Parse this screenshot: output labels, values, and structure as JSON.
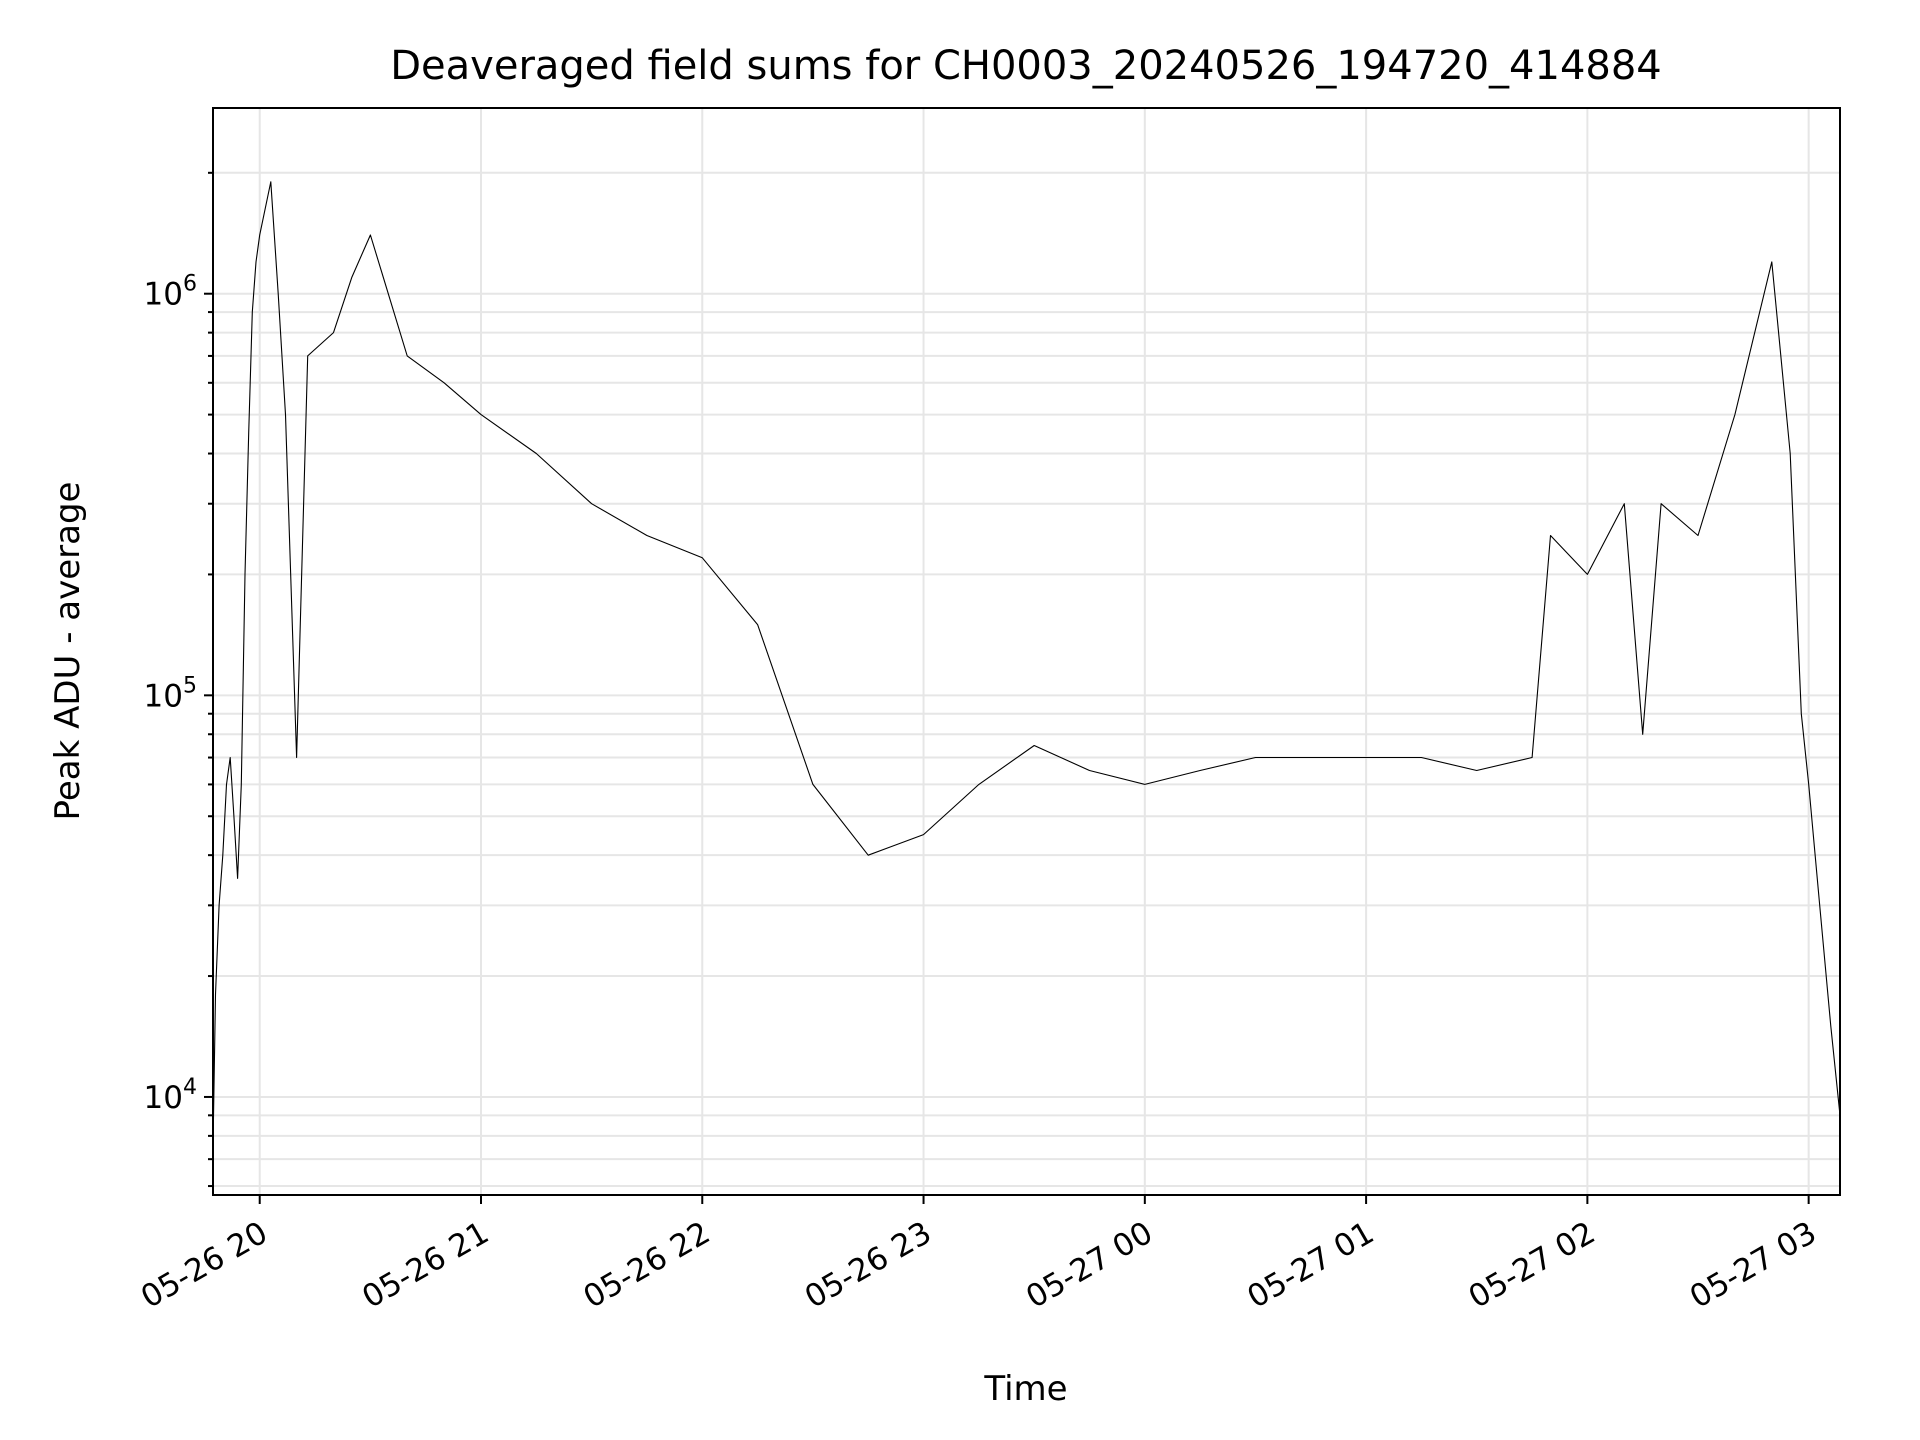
{
  "chart_data": {
    "type": "line",
    "title": "Deaveraged field sums for CH0003_20240526_194720_414884",
    "xlabel": "Time",
    "ylabel": "Peak ADU - average",
    "yscale": "log",
    "ylim": [
      5700,
      2900000
    ],
    "xlim": [
      "2024-05-26 19:47:20",
      "2024-05-27 03:08:30"
    ],
    "grid": true,
    "grid_minor": true,
    "line_color": "#000000",
    "x_ticks": [
      "2024-05-26 20:00",
      "2024-05-26 21:00",
      "2024-05-26 22:00",
      "2024-05-26 23:00",
      "2024-05-27 00:00",
      "2024-05-27 01:00",
      "2024-05-27 02:00",
      "2024-05-27 03:00"
    ],
    "x_tick_labels": [
      "05-26 20",
      "05-26 21",
      "05-26 22",
      "05-26 23",
      "05-27 00",
      "05-27 01",
      "05-27 02",
      "05-27 03"
    ],
    "y_ticks": [
      {
        "base": "10",
        "exp": "4",
        "value": 10000
      },
      {
        "base": "10",
        "exp": "5",
        "value": 100000
      },
      {
        "base": "10",
        "exp": "6",
        "value": 1000000
      }
    ],
    "series": [
      {
        "values": [
          [
            "2024-05-26 19:47:20",
            7500
          ],
          [
            "2024-05-26 19:48",
            18000
          ],
          [
            "2024-05-26 19:49",
            30000
          ],
          [
            "2024-05-26 19:50",
            40000
          ],
          [
            "2024-05-26 19:51",
            60000
          ],
          [
            "2024-05-26 19:52",
            70000
          ],
          [
            "2024-05-26 19:53",
            50000
          ],
          [
            "2024-05-26 19:54",
            35000
          ],
          [
            "2024-05-26 19:55",
            60000
          ],
          [
            "2024-05-26 19:56",
            200000
          ],
          [
            "2024-05-26 19:57",
            450000
          ],
          [
            "2024-05-26 19:58",
            900000
          ],
          [
            "2024-05-26 19:59",
            1200000
          ],
          [
            "2024-05-26 20:00",
            1400000
          ],
          [
            "2024-05-26 20:03",
            1900000
          ],
          [
            "2024-05-26 20:05",
            1000000
          ],
          [
            "2024-05-26 20:07",
            500000
          ],
          [
            "2024-05-26 20:10",
            70000
          ],
          [
            "2024-05-26 20:13",
            700000
          ],
          [
            "2024-05-26 20:20",
            800000
          ],
          [
            "2024-05-26 20:25",
            1100000
          ],
          [
            "2024-05-26 20:30",
            1400000
          ],
          [
            "2024-05-26 20:40",
            700000
          ],
          [
            "2024-05-26 20:50",
            600000
          ],
          [
            "2024-05-26 21:00",
            500000
          ],
          [
            "2024-05-26 21:15",
            400000
          ],
          [
            "2024-05-26 21:30",
            300000
          ],
          [
            "2024-05-26 21:45",
            250000
          ],
          [
            "2024-05-26 22:00",
            220000
          ],
          [
            "2024-05-26 22:15",
            150000
          ],
          [
            "2024-05-26 22:30",
            60000
          ],
          [
            "2024-05-26 22:45",
            40000
          ],
          [
            "2024-05-26 23:00",
            45000
          ],
          [
            "2024-05-26 23:15",
            60000
          ],
          [
            "2024-05-26 23:30",
            75000
          ],
          [
            "2024-05-26 23:45",
            65000
          ],
          [
            "2024-05-27 00:00",
            60000
          ],
          [
            "2024-05-27 00:15",
            65000
          ],
          [
            "2024-05-27 00:30",
            70000
          ],
          [
            "2024-05-27 00:45",
            70000
          ],
          [
            "2024-05-27 01:00",
            70000
          ],
          [
            "2024-05-27 01:15",
            70000
          ],
          [
            "2024-05-27 01:30",
            65000
          ],
          [
            "2024-05-27 01:45",
            70000
          ],
          [
            "2024-05-27 01:50",
            250000
          ],
          [
            "2024-05-27 02:00",
            200000
          ],
          [
            "2024-05-27 02:10",
            300000
          ],
          [
            "2024-05-27 02:15",
            80000
          ],
          [
            "2024-05-27 02:20",
            300000
          ],
          [
            "2024-05-27 02:30",
            250000
          ],
          [
            "2024-05-27 02:40",
            500000
          ],
          [
            "2024-05-27 02:50",
            1200000
          ],
          [
            "2024-05-27 02:55",
            400000
          ],
          [
            "2024-05-27 02:58",
            90000
          ],
          [
            "2024-05-27 03:00",
            60000
          ],
          [
            "2024-05-27 03:03",
            30000
          ],
          [
            "2024-05-27 03:06",
            15000
          ],
          [
            "2024-05-27 03:08:30",
            9000
          ]
        ]
      }
    ]
  }
}
